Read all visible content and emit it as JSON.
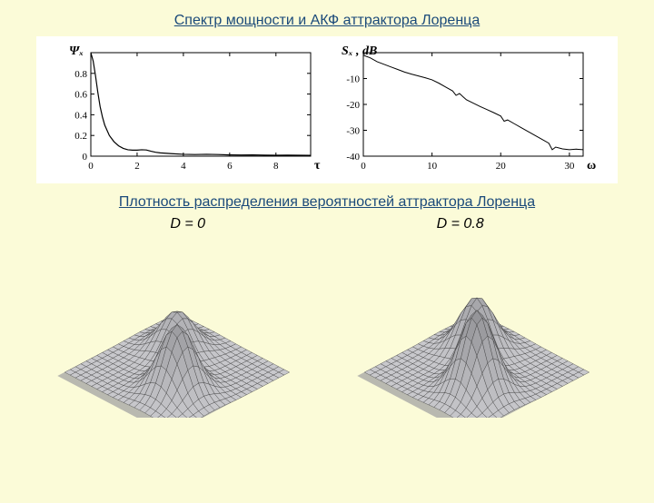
{
  "title_top": "Спектр мощности и АКФ аттрактора Лоренца",
  "title_bottom": "Плотность распределения вероятностей аттрактора Лоренца",
  "d_label_left": "D = 0",
  "d_label_right": "D = 0.8",
  "background_color": "#fbfbd8",
  "panel_bg": "#ffffff",
  "acf_chart": {
    "type": "line",
    "ylabel": "Ψₓ",
    "xlabel": "τ",
    "xlim": [
      0,
      9.5
    ],
    "ylim": [
      0,
      1.0
    ],
    "xticks": [
      0,
      2,
      4,
      6,
      8
    ],
    "yticks": [
      0,
      0.2,
      0.4,
      0.6,
      0.8,
      1.0
    ],
    "ytick_labels": [
      "0",
      "0.2",
      "0.4",
      "0.6",
      "0.8",
      ""
    ],
    "line_color": "#000000",
    "line_width": 1.2,
    "data": [
      [
        0,
        1.0
      ],
      [
        0.1,
        0.92
      ],
      [
        0.2,
        0.78
      ],
      [
        0.3,
        0.62
      ],
      [
        0.4,
        0.48
      ],
      [
        0.5,
        0.38
      ],
      [
        0.6,
        0.3
      ],
      [
        0.8,
        0.2
      ],
      [
        1.0,
        0.14
      ],
      [
        1.2,
        0.1
      ],
      [
        1.4,
        0.075
      ],
      [
        1.6,
        0.062
      ],
      [
        1.8,
        0.058
      ],
      [
        2.0,
        0.058
      ],
      [
        2.2,
        0.062
      ],
      [
        2.4,
        0.06
      ],
      [
        2.6,
        0.048
      ],
      [
        2.8,
        0.038
      ],
      [
        3.0,
        0.032
      ],
      [
        3.5,
        0.024
      ],
      [
        4.0,
        0.018
      ],
      [
        4.5,
        0.016
      ],
      [
        5.0,
        0.018
      ],
      [
        5.5,
        0.016
      ],
      [
        6.0,
        0.012
      ],
      [
        6.5,
        0.011
      ],
      [
        7.0,
        0.012
      ],
      [
        7.5,
        0.01
      ],
      [
        8.0,
        0.009
      ],
      [
        8.5,
        0.01
      ],
      [
        9.0,
        0.009
      ],
      [
        9.5,
        0.008
      ]
    ]
  },
  "spectrum_chart": {
    "type": "line",
    "ylabel": "Sₓ , dB",
    "xlabel": "ω",
    "xlim": [
      0,
      32
    ],
    "ylim": [
      -40,
      0
    ],
    "xticks": [
      0,
      10,
      20,
      30
    ],
    "yticks": [
      -40,
      -30,
      -20,
      -10,
      0
    ],
    "ytick_labels": [
      "-40",
      "-30",
      "-20",
      "-10",
      ""
    ],
    "line_color": "#000000",
    "line_width": 1.0,
    "data": [
      [
        0,
        -1
      ],
      [
        1,
        -2
      ],
      [
        2,
        -3.5
      ],
      [
        3,
        -4.5
      ],
      [
        4,
        -5.5
      ],
      [
        5,
        -6.5
      ],
      [
        6,
        -7.5
      ],
      [
        7,
        -8.3
      ],
      [
        8,
        -9.0
      ],
      [
        9,
        -9.7
      ],
      [
        10,
        -10.5
      ],
      [
        11,
        -11.8
      ],
      [
        12,
        -13.3
      ],
      [
        13,
        -14.8
      ],
      [
        13.5,
        -16.5
      ],
      [
        14,
        -15.8
      ],
      [
        14.5,
        -17
      ],
      [
        15,
        -18.2
      ],
      [
        16,
        -19.5
      ],
      [
        17,
        -20.8
      ],
      [
        18,
        -22
      ],
      [
        19,
        -23.2
      ],
      [
        20,
        -24.5
      ],
      [
        20.5,
        -26.5
      ],
      [
        21,
        -26
      ],
      [
        22,
        -27.5
      ],
      [
        23,
        -29
      ],
      [
        24,
        -30.5
      ],
      [
        25,
        -32
      ],
      [
        26,
        -33.5
      ],
      [
        27,
        -35
      ],
      [
        27.5,
        -37.5
      ],
      [
        28,
        -36.5
      ],
      [
        29,
        -37.2
      ],
      [
        30,
        -37.5
      ],
      [
        31,
        -37.3
      ],
      [
        32,
        -37.5
      ]
    ]
  },
  "surface_left": {
    "type": "surface3d",
    "grid_nx": 22,
    "grid_ny": 22,
    "fill_color": "#c8c8cc",
    "edge_color": "#303030",
    "peak_height": 70,
    "peak2_height": 40,
    "shadow_color": "#9c9ca0"
  },
  "surface_right": {
    "type": "surface3d",
    "grid_nx": 22,
    "grid_ny": 22,
    "fill_color": "#c8c8cc",
    "edge_color": "#303030",
    "peak_height": 85,
    "peak2_height": 55,
    "shadow_color": "#9c9ca0"
  }
}
